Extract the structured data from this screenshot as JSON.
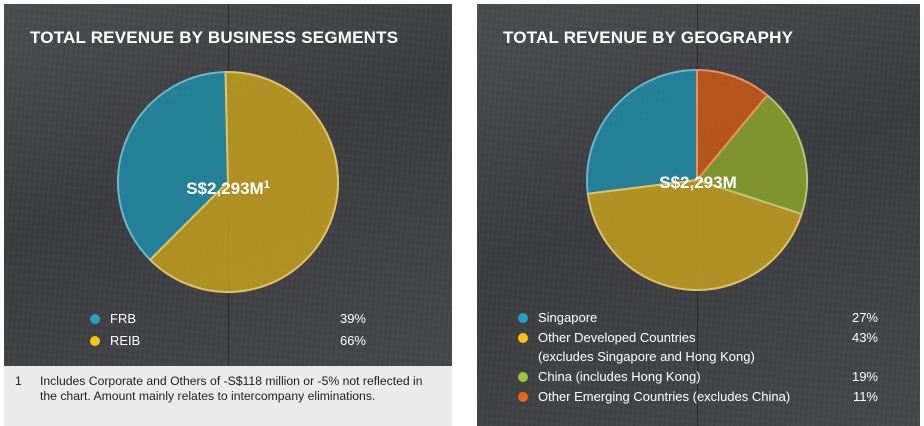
{
  "chart_data": [
    {
      "type": "pie",
      "title": "TOTAL REVENUE BY BUSINESS SEGMENTS",
      "center_label": "S$2,293M",
      "center_label_note": "1",
      "categories": [
        "FRB",
        "REIB"
      ],
      "values": [
        39,
        66
      ],
      "value_labels": [
        "39%",
        "66%"
      ],
      "unit": "%",
      "colors": [
        "#1e8fa9",
        "#c9a21c"
      ],
      "legend_position": "bottom"
    },
    {
      "type": "pie",
      "title": "TOTAL REVENUE BY GEOGRAPHY",
      "center_label": "S$2,293M",
      "categories": [
        "Singapore",
        "Other Developed Countries (excludes Singapore and Hong Kong)",
        "China (includes Hong Kong)",
        "Other Emerging Countries (excludes China)"
      ],
      "values": [
        27,
        43,
        19,
        11
      ],
      "value_labels": [
        "27%",
        "43%",
        "19%",
        "11%"
      ],
      "unit": "%",
      "colors": [
        "#1e8fa9",
        "#c9a21c",
        "#8fa62a",
        "#cf5a14"
      ],
      "legend_position": "bottom"
    }
  ],
  "legend_left": [
    {
      "label": "FRB",
      "pct": "39%",
      "color": "#1fa3c2"
    },
    {
      "label": "REIB",
      "pct": "66%",
      "color": "#f4c417"
    }
  ],
  "legend_right": [
    {
      "label": "Singapore",
      "pct": "27%",
      "color": "#1fa3c2"
    },
    {
      "label_line1": "Other Developed Countries",
      "label_line2": "(excludes Singapore and Hong Kong)",
      "pct": "43%",
      "color": "#f4c417"
    },
    {
      "label": "China (includes Hong Kong)",
      "pct": "19%",
      "color": "#9cc43a"
    },
    {
      "label": "Other Emerging Countries (excludes China)",
      "pct": "11%",
      "color": "#e8661a"
    }
  ],
  "footnote": {
    "number": "1",
    "text": "Includes Corporate and Others of -S$118 million or -5% not reflected in the chart. Amount mainly relates to intercompany eliminations."
  }
}
